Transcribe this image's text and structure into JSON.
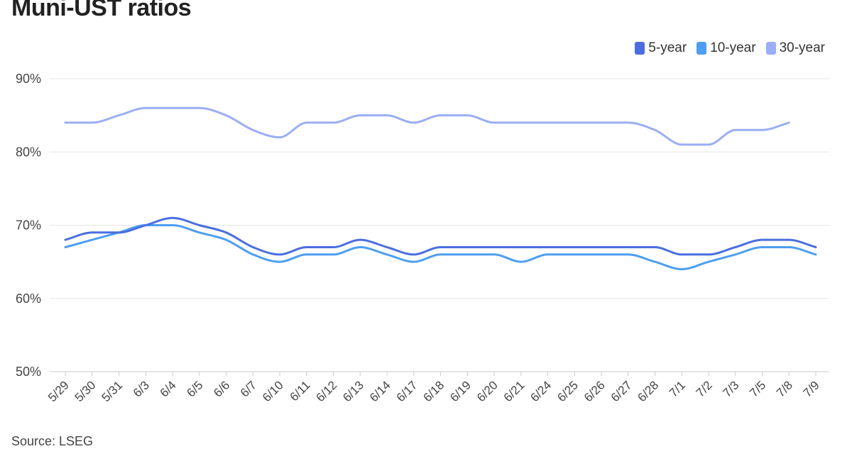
{
  "chart_data": {
    "type": "line",
    "title": "Muni-UST ratios",
    "source": "Source: LSEG",
    "categories": [
      "5/29",
      "5/30",
      "5/31",
      "6/3",
      "6/4",
      "6/5",
      "6/6",
      "6/7",
      "6/10",
      "6/11",
      "6/12",
      "6/13",
      "6/14",
      "6/17",
      "6/18",
      "6/19",
      "6/20",
      "6/21",
      "6/24",
      "6/25",
      "6/26",
      "6/27",
      "6/28",
      "7/1",
      "7/2",
      "7/3",
      "7/5",
      "7/8",
      "7/9"
    ],
    "ylim": [
      50,
      90
    ],
    "yticks": [
      50,
      60,
      70,
      80,
      90
    ],
    "ytick_suffix": "%",
    "grid": true,
    "legend_position": "top-right",
    "series": [
      {
        "name": "5-year",
        "color": "#4a6ee0",
        "values": [
          68,
          69,
          69,
          70,
          71,
          70,
          69,
          67,
          66,
          67,
          67,
          68,
          67,
          66,
          67,
          67,
          67,
          67,
          67,
          67,
          67,
          67,
          67,
          66,
          66,
          67,
          68,
          68,
          67
        ]
      },
      {
        "name": "10-year",
        "color": "#4d9ef0",
        "values": [
          67,
          68,
          69,
          70,
          70,
          69,
          68,
          66,
          65,
          66,
          66,
          67,
          66,
          65,
          66,
          66,
          66,
          65,
          66,
          66,
          66,
          66,
          65,
          64,
          65,
          66,
          67,
          67,
          66
        ]
      },
      {
        "name": "30-year",
        "color": "#9aaef5",
        "values": [
          84,
          84,
          85,
          86,
          86,
          86,
          85,
          83,
          82,
          84,
          84,
          85,
          85,
          84,
          85,
          85,
          84,
          84,
          84,
          84,
          84,
          84,
          83,
          81,
          81,
          83,
          83,
          84,
          null
        ]
      }
    ]
  }
}
